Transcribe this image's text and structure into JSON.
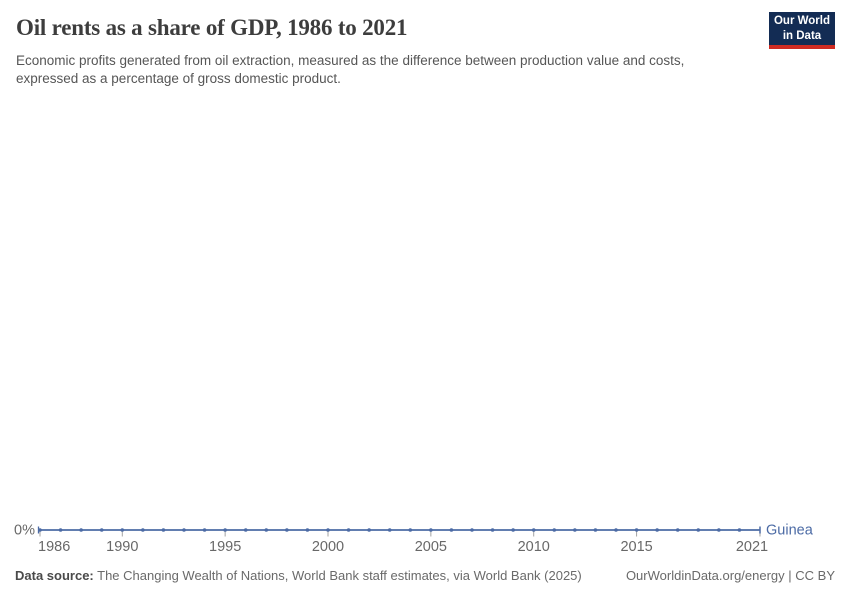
{
  "header": {
    "title": "Oil rents as a share of GDP, 1986 to 2021",
    "subtitle": "Economic profits generated from oil extraction, measured as the difference between production value and costs, expressed as a percentage of gross domestic product.",
    "logo": {
      "line1": "Our World",
      "line2": "in Data"
    }
  },
  "chart_data": {
    "type": "line",
    "title": "Oil rents as a share of GDP, 1986 to 2021",
    "xlabel": "",
    "ylabel": "",
    "xlim": [
      1986,
      2021
    ],
    "ylim": [
      0,
      0
    ],
    "grid": false,
    "legend_position": "right-of-line-end",
    "x_ticks": [
      1986,
      1990,
      1995,
      2000,
      2005,
      2010,
      2015,
      2021
    ],
    "y_tick_labels": [
      "0%"
    ],
    "series": [
      {
        "name": "Guinea",
        "color": "#4C6BA5",
        "x": [
          1986,
          1987,
          1988,
          1989,
          1990,
          1991,
          1992,
          1993,
          1994,
          1995,
          1996,
          1997,
          1998,
          1999,
          2000,
          2001,
          2002,
          2003,
          2004,
          2005,
          2006,
          2007,
          2008,
          2009,
          2010,
          2011,
          2012,
          2013,
          2014,
          2015,
          2016,
          2017,
          2018,
          2019,
          2020,
          2021
        ],
        "values": [
          0,
          0,
          0,
          0,
          0,
          0,
          0,
          0,
          0,
          0,
          0,
          0,
          0,
          0,
          0,
          0,
          0,
          0,
          0,
          0,
          0,
          0,
          0,
          0,
          0,
          0,
          0,
          0,
          0,
          0,
          0,
          0,
          0,
          0,
          0,
          0
        ]
      }
    ]
  },
  "footer": {
    "datasource_label": "Data source:",
    "datasource_text": " The Changing Wealth of Nations, World Bank staff estimates, via World Bank (2025)",
    "attribution": "OurWorldinData.org/energy | CC BY"
  },
  "colors": {
    "line": "#4C6BA5",
    "axis_tick": "#A3A3A3",
    "axis_label": "#686868",
    "title_text": "#3D3D3D",
    "subtitle_text": "#565656",
    "logo_navy": "#132C54",
    "logo_red": "#CF2B22"
  }
}
